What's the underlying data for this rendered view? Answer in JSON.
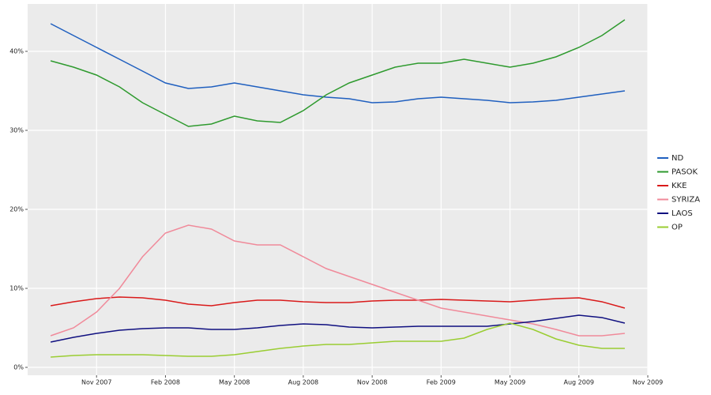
{
  "chart_data": {
    "type": "line",
    "x": [
      "2007-09",
      "2007-10",
      "2007-11",
      "2007-12",
      "2008-01",
      "2008-02",
      "2008-03",
      "2008-04",
      "2008-05",
      "2008-06",
      "2008-07",
      "2008-08",
      "2008-09",
      "2008-10",
      "2008-11",
      "2008-12",
      "2009-01",
      "2009-02",
      "2009-03",
      "2009-04",
      "2009-05",
      "2009-06",
      "2009-07",
      "2009-08",
      "2009-09",
      "2009-10"
    ],
    "series": [
      {
        "name": "ND",
        "color": "#1f5fbf",
        "values": [
          43.5,
          42,
          40.5,
          39,
          37.5,
          36,
          35.3,
          35.5,
          36,
          35.5,
          35,
          34.5,
          34.2,
          34,
          33.5,
          33.6,
          34,
          34.2,
          34,
          33.8,
          33.5,
          33.6,
          33.8,
          34.2,
          34.6,
          35
        ]
      },
      {
        "name": "PASOK",
        "color": "#2e9a2e",
        "values": [
          38.8,
          38,
          37,
          35.5,
          33.5,
          32,
          30.5,
          30.8,
          31.8,
          31.2,
          31,
          32.5,
          34.5,
          36,
          37,
          38,
          38.5,
          38.5,
          39,
          38.5,
          38,
          38.5,
          39.3,
          40.5,
          42,
          44
        ]
      },
      {
        "name": "KKE",
        "color": "#d91a1a",
        "values": [
          7.8,
          8.3,
          8.7,
          8.9,
          8.8,
          8.5,
          8,
          7.8,
          8.2,
          8.5,
          8.5,
          8.3,
          8.2,
          8.2,
          8.4,
          8.5,
          8.5,
          8.6,
          8.5,
          8.4,
          8.3,
          8.5,
          8.7,
          8.8,
          8.3,
          7.5
        ]
      },
      {
        "name": "SYRIZA",
        "color": "#f08a9a",
        "values": [
          4,
          5,
          7,
          10,
          14,
          17,
          18,
          17.5,
          16,
          15.5,
          15.5,
          14,
          12.5,
          11.5,
          10.5,
          9.5,
          8.5,
          7.5,
          7,
          6.5,
          6,
          5.5,
          4.8,
          4,
          4,
          4.3
        ]
      },
      {
        "name": "LAOS",
        "color": "#101080",
        "values": [
          3.2,
          3.8,
          4.3,
          4.7,
          4.9,
          5,
          5,
          4.8,
          4.8,
          5,
          5.3,
          5.5,
          5.4,
          5.1,
          5,
          5.1,
          5.2,
          5.2,
          5.2,
          5.2,
          5.5,
          5.8,
          6.2,
          6.6,
          6.3,
          5.6
        ]
      },
      {
        "name": "OP",
        "color": "#9acd32",
        "values": [
          1.3,
          1.5,
          1.6,
          1.6,
          1.6,
          1.5,
          1.4,
          1.4,
          1.6,
          2,
          2.4,
          2.7,
          2.9,
          2.9,
          3.1,
          3.3,
          3.3,
          3.3,
          3.7,
          4.8,
          5.6,
          4.8,
          3.6,
          2.8,
          2.4,
          2.4
        ]
      }
    ],
    "xlim": [
      "2007-08",
      "2009-11"
    ],
    "xticks": [
      {
        "value": "2007-11",
        "label": "Nov 2007"
      },
      {
        "value": "2008-02",
        "label": "Feb 2008"
      },
      {
        "value": "2008-05",
        "label": "May 2008"
      },
      {
        "value": "2008-08",
        "label": "Aug 2008"
      },
      {
        "value": "2008-11",
        "label": "Nov 2008"
      },
      {
        "value": "2009-02",
        "label": "Feb 2009"
      },
      {
        "value": "2009-05",
        "label": "May 2009"
      },
      {
        "value": "2009-08",
        "label": "Aug 2009"
      },
      {
        "value": "2009-11",
        "label": "Nov 2009"
      }
    ],
    "ylim": [
      -1,
      46
    ],
    "yticks": [
      {
        "value": 0,
        "label": "0%"
      },
      {
        "value": 10,
        "label": "10%"
      },
      {
        "value": 20,
        "label": "20%"
      },
      {
        "value": 30,
        "label": "30%"
      },
      {
        "value": 40,
        "label": "40%"
      }
    ],
    "grid": true,
    "legend": "right"
  }
}
